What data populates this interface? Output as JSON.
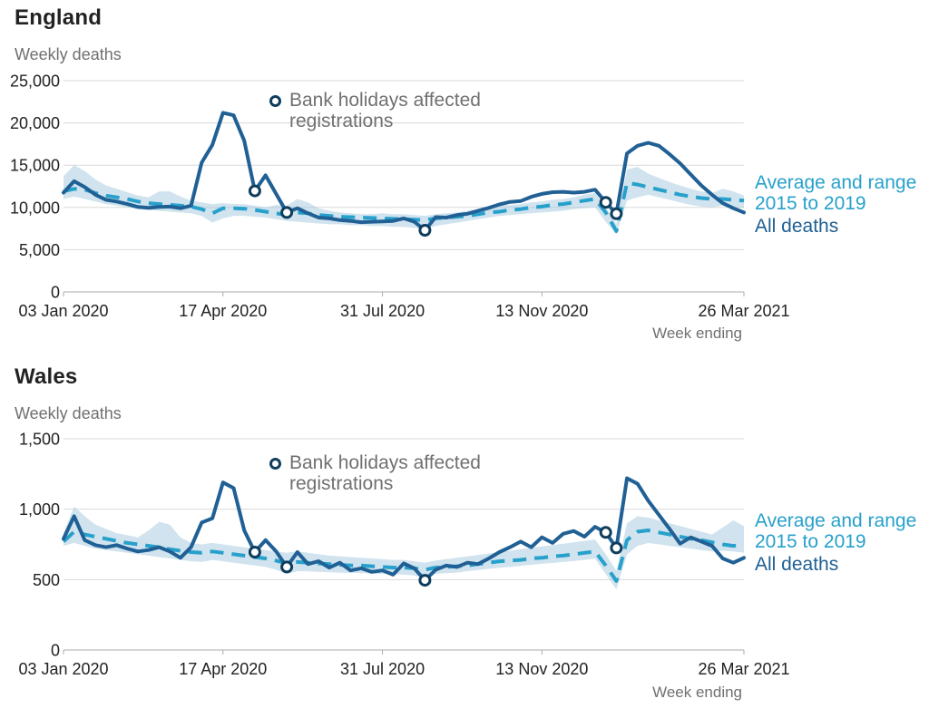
{
  "colors": {
    "all_deaths_line": "#206095",
    "average_line": "#27a0cc",
    "range_band": "#a9cce0",
    "bank_holiday_marker": "#0f3d5c",
    "grid_line": "#d9d9d9",
    "axis_line": "#ababab",
    "dark_text": "#222222",
    "gray_text": "#707071",
    "range_legend_text": "#27a0cc",
    "all_deaths_legend_text": "#206095"
  },
  "chart_data": [
    {
      "id": "england",
      "svg_id": "svg-england",
      "type": "line",
      "title": "England",
      "ylabel": "Weekly deaths",
      "xlabel": "Week ending",
      "ylim": [
        0,
        25000
      ],
      "yticks": [
        0,
        5000,
        10000,
        15000,
        20000,
        25000
      ],
      "ytick_labels": [
        "0",
        "5,000",
        "10,000",
        "15,000",
        "20,000",
        "25,000"
      ],
      "xtick_labels": [
        "03 Jan 2020",
        "17 Apr 2020",
        "31 Jul 2020",
        "13 Nov 2020",
        "26 Mar 2021"
      ],
      "xtick_weeks": [
        0,
        15,
        30,
        45,
        64
      ],
      "annotation": "Bank holidays affected registrations",
      "legend": [
        "Average and range 2015 to 2019",
        "All deaths"
      ],
      "bank_holiday_indices": [
        18,
        21,
        34,
        51,
        52
      ],
      "series": [
        {
          "name": "All deaths",
          "values": [
            11750,
            13100,
            12400,
            11500,
            10900,
            10700,
            10400,
            10050,
            9950,
            10050,
            10100,
            9900,
            10200,
            15300,
            17400,
            21200,
            20900,
            17900,
            11950,
            13800,
            11600,
            9400,
            9900,
            9300,
            8800,
            8700,
            8500,
            8400,
            8250,
            8300,
            8350,
            8400,
            8700,
            8300,
            7300,
            8850,
            8800,
            9100,
            9250,
            9600,
            9950,
            10350,
            10650,
            10750,
            11250,
            11600,
            11800,
            11850,
            11750,
            11850,
            12100,
            10600,
            9250,
            16400,
            17300,
            17650,
            17300,
            16300,
            15200,
            13900,
            12600,
            11500,
            10500,
            9900,
            9400
          ]
        },
        {
          "name": "Average 2015 to 2019",
          "values": [
            11900,
            12200,
            12100,
            11700,
            11400,
            11200,
            11000,
            10700,
            10500,
            10400,
            10300,
            10200,
            10100,
            9800,
            9300,
            9900,
            9900,
            9850,
            9700,
            9500,
            9300,
            9100,
            9400,
            9300,
            9100,
            9000,
            8900,
            8850,
            8800,
            8750,
            8700,
            8650,
            8600,
            8550,
            8500,
            8700,
            8800,
            8900,
            9000,
            9200,
            9400,
            9500,
            9700,
            9800,
            10000,
            10100,
            10300,
            10400,
            10600,
            10800,
            11000,
            9400,
            7200,
            12900,
            12700,
            12400,
            12100,
            11800,
            11500,
            11300,
            11100,
            11000,
            11000,
            10900,
            10800
          ]
        },
        {
          "name": "Range minimum 2015 to 2019",
          "values": [
            11000,
            11300,
            11000,
            10700,
            10400,
            10200,
            10000,
            9800,
            9700,
            9600,
            9500,
            9400,
            9300,
            9000,
            8200,
            8700,
            9000,
            9000,
            8900,
            8800,
            8600,
            8400,
            8300,
            8200,
            8100,
            8000,
            8000,
            7900,
            7900,
            7800,
            7800,
            7700,
            7700,
            7600,
            7400,
            7800,
            8000,
            8200,
            8400,
            8600,
            8800,
            9000,
            9100,
            9200,
            9300,
            9400,
            9500,
            9600,
            9800,
            9900,
            10000,
            8300,
            6800,
            10800,
            11200,
            11500,
            11200,
            10900,
            10600,
            10300,
            10100,
            10000,
            10200,
            10100,
            9900
          ]
        },
        {
          "name": "Range maximum 2015 to 2019",
          "values": [
            13700,
            15000,
            14300,
            13300,
            12600,
            12200,
            11800,
            11400,
            11200,
            11900,
            11900,
            11300,
            10800,
            10600,
            10400,
            10500,
            10400,
            10400,
            10200,
            10000,
            10300,
            10200,
            11000,
            10600,
            9900,
            9600,
            9400,
            9300,
            9200,
            9200,
            9300,
            9200,
            9200,
            9100,
            9000,
            9200,
            9300,
            9400,
            9600,
            9800,
            10000,
            10200,
            10300,
            10400,
            10600,
            10700,
            10900,
            11000,
            11200,
            11500,
            11700,
            10000,
            8000,
            14500,
            14800,
            14000,
            13500,
            13000,
            12600,
            12200,
            11900,
            11700,
            12200,
            11900,
            11400
          ]
        }
      ]
    },
    {
      "id": "wales",
      "svg_id": "svg-wales",
      "type": "line",
      "title": "Wales",
      "ylabel": "Weekly deaths",
      "xlabel": "Week ending",
      "ylim": [
        0,
        1500
      ],
      "yticks": [
        0,
        500,
        1000,
        1500
      ],
      "ytick_labels": [
        "0",
        "500",
        "1,000",
        "1,500"
      ],
      "xtick_labels": [
        "03 Jan 2020",
        "17 Apr 2020",
        "31 Jul 2020",
        "13 Nov 2020",
        "26 Mar 2021"
      ],
      "xtick_weeks": [
        0,
        15,
        30,
        45,
        64
      ],
      "annotation": "Bank holidays affected registrations",
      "legend": [
        "Average and range 2015 to 2019",
        "All deaths"
      ],
      "bank_holiday_indices": [
        18,
        21,
        34,
        51,
        52
      ],
      "series": [
        {
          "name": "All deaths",
          "values": [
            790,
            950,
            780,
            745,
            730,
            745,
            720,
            700,
            710,
            730,
            700,
            655,
            730,
            905,
            935,
            1190,
            1150,
            850,
            695,
            780,
            700,
            590,
            695,
            610,
            630,
            585,
            620,
            565,
            580,
            555,
            565,
            535,
            615,
            580,
            495,
            570,
            600,
            590,
            620,
            610,
            650,
            695,
            730,
            770,
            730,
            800,
            760,
            825,
            845,
            805,
            875,
            835,
            725,
            1220,
            1180,
            1060,
            960,
            860,
            755,
            800,
            770,
            740,
            650,
            620,
            655
          ]
        },
        {
          "name": "Average 2015 to 2019",
          "values": [
            770,
            840,
            820,
            805,
            790,
            775,
            760,
            750,
            740,
            730,
            715,
            705,
            695,
            690,
            700,
            690,
            680,
            670,
            660,
            650,
            635,
            615,
            625,
            620,
            615,
            610,
            605,
            600,
            600,
            595,
            590,
            585,
            585,
            580,
            570,
            585,
            590,
            595,
            600,
            610,
            620,
            630,
            635,
            640,
            650,
            655,
            665,
            670,
            680,
            690,
            700,
            600,
            490,
            780,
            840,
            850,
            835,
            820,
            805,
            790,
            780,
            765,
            750,
            740,
            745
          ]
        },
        {
          "name": "Range minimum 2015 to 2019",
          "values": [
            740,
            760,
            740,
            720,
            710,
            700,
            690,
            680,
            670,
            660,
            650,
            640,
            630,
            625,
            640,
            630,
            620,
            610,
            600,
            590,
            570,
            540,
            560,
            558,
            555,
            552,
            550,
            548,
            545,
            542,
            540,
            538,
            535,
            530,
            510,
            540,
            545,
            550,
            560,
            568,
            576,
            584,
            590,
            598,
            605,
            612,
            618,
            625,
            632,
            640,
            648,
            540,
            430,
            680,
            740,
            760,
            750,
            740,
            730,
            720,
            710,
            700,
            705,
            700,
            690
          ]
        },
        {
          "name": "Range maximum 2015 to 2019",
          "values": [
            830,
            1020,
            950,
            890,
            860,
            830,
            815,
            800,
            850,
            910,
            890,
            800,
            760,
            750,
            760,
            750,
            740,
            730,
            720,
            710,
            700,
            690,
            700,
            690,
            680,
            670,
            665,
            660,
            655,
            650,
            645,
            640,
            640,
            630,
            620,
            635,
            645,
            655,
            665,
            675,
            685,
            695,
            705,
            715,
            725,
            735,
            745,
            755,
            765,
            775,
            785,
            680,
            560,
            900,
            950,
            940,
            920,
            900,
            880,
            860,
            840,
            820,
            870,
            920,
            880
          ]
        }
      ]
    }
  ]
}
